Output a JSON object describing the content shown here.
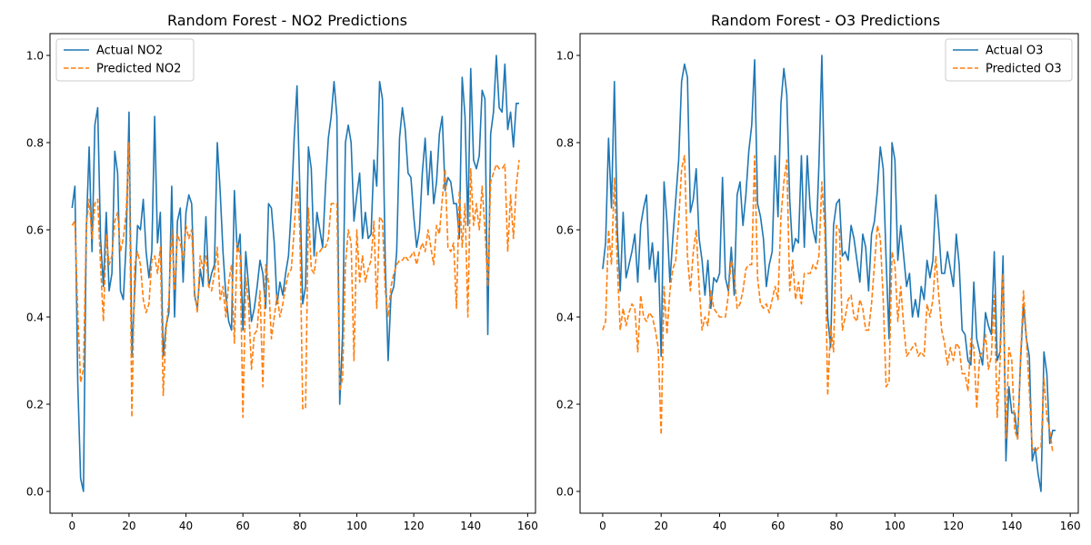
{
  "colors": {
    "actual": "#1f77b4",
    "predicted": "#ff7f0e"
  },
  "chart_data": [
    {
      "type": "line",
      "title": "Random Forest - NO2 Predictions",
      "xlabel": "",
      "ylabel": "",
      "xlim": [
        -7.75,
        162.75
      ],
      "ylim": [
        -0.05,
        1.05
      ],
      "xticks": [
        0,
        20,
        40,
        60,
        80,
        100,
        120,
        140,
        160
      ],
      "xtick_labels": [
        "0",
        "20",
        "40",
        "60",
        "80",
        "100",
        "120",
        "140",
        "160"
      ],
      "yticks": [
        0.0,
        0.2,
        0.4,
        0.6,
        0.8,
        1.0
      ],
      "ytick_labels": [
        "0.0",
        "0.2",
        "0.4",
        "0.6",
        "0.8",
        "1.0"
      ],
      "grid": false,
      "legend": "top-left",
      "series": [
        {
          "name": "Actual NO2",
          "style": "solid",
          "values": [
            0.65,
            0.7,
            0.25,
            0.03,
            0.0,
            0.6,
            0.79,
            0.55,
            0.84,
            0.88,
            0.58,
            0.47,
            0.64,
            0.46,
            0.5,
            0.78,
            0.73,
            0.46,
            0.44,
            0.57,
            0.87,
            0.31,
            0.46,
            0.61,
            0.6,
            0.67,
            0.55,
            0.49,
            0.55,
            0.86,
            0.57,
            0.64,
            0.31,
            0.38,
            0.41,
            0.7,
            0.4,
            0.62,
            0.65,
            0.48,
            0.64,
            0.68,
            0.66,
            0.45,
            0.42,
            0.51,
            0.47,
            0.63,
            0.47,
            0.5,
            0.52,
            0.8,
            0.69,
            0.55,
            0.45,
            0.39,
            0.37,
            0.69,
            0.55,
            0.59,
            0.37,
            0.55,
            0.47,
            0.39,
            0.42,
            0.47,
            0.53,
            0.5,
            0.42,
            0.66,
            0.65,
            0.57,
            0.43,
            0.48,
            0.45,
            0.5,
            0.54,
            0.65,
            0.81,
            0.93,
            0.69,
            0.43,
            0.47,
            0.79,
            0.74,
            0.54,
            0.64,
            0.6,
            0.56,
            0.7,
            0.81,
            0.86,
            0.94,
            0.86,
            0.2,
            0.36,
            0.8,
            0.84,
            0.8,
            0.62,
            0.68,
            0.73,
            0.58,
            0.64,
            0.58,
            0.59,
            0.76,
            0.7,
            0.94,
            0.9,
            0.52,
            0.3,
            0.45,
            0.47,
            0.55,
            0.81,
            0.88,
            0.83,
            0.73,
            0.72,
            0.63,
            0.56,
            0.6,
            0.73,
            0.81,
            0.68,
            0.78,
            0.66,
            0.71,
            0.82,
            0.86,
            0.69,
            0.72,
            0.71,
            0.66,
            0.66,
            0.58,
            0.95,
            0.86,
            0.61,
            0.97,
            0.76,
            0.74,
            0.77,
            0.92,
            0.9,
            0.36,
            0.82,
            0.87,
            1.0,
            0.88,
            0.87,
            0.98,
            0.83,
            0.87,
            0.79,
            0.89,
            0.89
          ]
        },
        {
          "name": "Predicted NO2",
          "style": "dashed",
          "values": [
            0.61,
            0.62,
            0.41,
            0.25,
            0.28,
            0.61,
            0.67,
            0.58,
            0.66,
            0.67,
            0.52,
            0.39,
            0.59,
            0.52,
            0.54,
            0.62,
            0.64,
            0.55,
            0.58,
            0.64,
            0.8,
            0.17,
            0.52,
            0.55,
            0.52,
            0.44,
            0.41,
            0.43,
            0.53,
            0.54,
            0.5,
            0.56,
            0.22,
            0.37,
            0.44,
            0.6,
            0.46,
            0.59,
            0.57,
            0.53,
            0.61,
            0.58,
            0.6,
            0.46,
            0.41,
            0.54,
            0.51,
            0.54,
            0.47,
            0.46,
            0.5,
            0.56,
            0.44,
            0.47,
            0.4,
            0.48,
            0.52,
            0.34,
            0.57,
            0.54,
            0.17,
            0.49,
            0.43,
            0.28,
            0.36,
            0.37,
            0.46,
            0.24,
            0.52,
            0.48,
            0.35,
            0.4,
            0.45,
            0.4,
            0.43,
            0.47,
            0.5,
            0.51,
            0.6,
            0.71,
            0.6,
            0.19,
            0.19,
            0.65,
            0.51,
            0.5,
            0.55,
            0.55,
            0.56,
            0.56,
            0.58,
            0.66,
            0.66,
            0.66,
            0.23,
            0.26,
            0.52,
            0.6,
            0.57,
            0.3,
            0.6,
            0.48,
            0.54,
            0.48,
            0.51,
            0.53,
            0.62,
            0.42,
            0.63,
            0.62,
            0.46,
            0.4,
            0.47,
            0.5,
            0.52,
            0.53,
            0.53,
            0.54,
            0.53,
            0.54,
            0.55,
            0.52,
            0.55,
            0.57,
            0.55,
            0.6,
            0.56,
            0.52,
            0.61,
            0.59,
            0.67,
            0.74,
            0.56,
            0.55,
            0.57,
            0.42,
            0.69,
            0.56,
            0.66,
            0.4,
            0.74,
            0.61,
            0.66,
            0.6,
            0.7,
            0.6,
            0.47,
            0.71,
            0.73,
            0.75,
            0.74,
            0.74,
            0.75,
            0.55,
            0.68,
            0.58,
            0.7,
            0.76
          ]
        }
      ]
    },
    {
      "type": "line",
      "title": "Random Forest - O3 Predictions",
      "xlabel": "",
      "ylabel": "",
      "xlim": [
        -7.75,
        162.75
      ],
      "ylim": [
        -0.05,
        1.05
      ],
      "xticks": [
        0,
        20,
        40,
        60,
        80,
        100,
        120,
        140,
        160
      ],
      "xtick_labels": [
        "0",
        "20",
        "40",
        "60",
        "80",
        "100",
        "120",
        "140",
        "160"
      ],
      "yticks": [
        0.0,
        0.2,
        0.4,
        0.6,
        0.8,
        1.0
      ],
      "ytick_labels": [
        "0.0",
        "0.2",
        "0.4",
        "0.6",
        "0.8",
        "1.0"
      ],
      "grid": false,
      "legend": "top-right",
      "series": [
        {
          "name": "Actual O3",
          "style": "solid",
          "values": [
            0.51,
            0.57,
            0.81,
            0.65,
            0.94,
            0.6,
            0.46,
            0.64,
            0.49,
            0.52,
            0.55,
            0.59,
            0.48,
            0.61,
            0.65,
            0.68,
            0.51,
            0.57,
            0.48,
            0.55,
            0.31,
            0.71,
            0.62,
            0.48,
            0.58,
            0.67,
            0.76,
            0.94,
            0.98,
            0.95,
            0.64,
            0.67,
            0.74,
            0.58,
            0.53,
            0.45,
            0.53,
            0.42,
            0.49,
            0.48,
            0.5,
            0.72,
            0.49,
            0.46,
            0.56,
            0.45,
            0.68,
            0.71,
            0.61,
            0.68,
            0.78,
            0.84,
            0.99,
            0.66,
            0.63,
            0.58,
            0.47,
            0.52,
            0.55,
            0.77,
            0.63,
            0.89,
            0.97,
            0.91,
            0.67,
            0.55,
            0.58,
            0.57,
            0.77,
            0.56,
            0.77,
            0.65,
            0.6,
            0.57,
            0.75,
            1.0,
            0.67,
            0.4,
            0.33,
            0.61,
            0.66,
            0.67,
            0.54,
            0.55,
            0.53,
            0.61,
            0.58,
            0.53,
            0.48,
            0.59,
            0.56,
            0.46,
            0.59,
            0.62,
            0.69,
            0.79,
            0.74,
            0.53,
            0.35,
            0.8,
            0.76,
            0.53,
            0.61,
            0.54,
            0.47,
            0.5,
            0.4,
            0.44,
            0.4,
            0.47,
            0.44,
            0.53,
            0.49,
            0.53,
            0.68,
            0.6,
            0.5,
            0.5,
            0.55,
            0.51,
            0.47,
            0.59,
            0.52,
            0.37,
            0.36,
            0.3,
            0.29,
            0.48,
            0.35,
            0.32,
            0.29,
            0.41,
            0.38,
            0.36,
            0.55,
            0.3,
            0.32,
            0.54,
            0.07,
            0.24,
            0.18,
            0.18,
            0.12,
            0.3,
            0.43,
            0.35,
            0.31,
            0.07,
            0.1,
            0.04,
            0.0,
            0.32,
            0.27,
            0.11,
            0.14,
            0.14
          ]
        },
        {
          "name": "Predicted O3",
          "style": "dashed",
          "values": [
            0.37,
            0.39,
            0.6,
            0.52,
            0.72,
            0.52,
            0.37,
            0.42,
            0.38,
            0.41,
            0.43,
            0.42,
            0.32,
            0.45,
            0.4,
            0.39,
            0.41,
            0.4,
            0.37,
            0.33,
            0.13,
            0.47,
            0.36,
            0.46,
            0.51,
            0.53,
            0.62,
            0.74,
            0.77,
            0.54,
            0.46,
            0.55,
            0.6,
            0.47,
            0.37,
            0.4,
            0.38,
            0.46,
            0.42,
            0.41,
            0.4,
            0.4,
            0.4,
            0.45,
            0.53,
            0.5,
            0.42,
            0.43,
            0.46,
            0.51,
            0.52,
            0.52,
            0.77,
            0.49,
            0.43,
            0.42,
            0.43,
            0.41,
            0.44,
            0.47,
            0.44,
            0.63,
            0.71,
            0.76,
            0.46,
            0.53,
            0.44,
            0.48,
            0.43,
            0.5,
            0.5,
            0.5,
            0.52,
            0.51,
            0.54,
            0.71,
            0.6,
            0.22,
            0.38,
            0.32,
            0.61,
            0.6,
            0.37,
            0.4,
            0.44,
            0.45,
            0.4,
            0.39,
            0.44,
            0.42,
            0.37,
            0.37,
            0.43,
            0.52,
            0.61,
            0.58,
            0.44,
            0.24,
            0.25,
            0.55,
            0.52,
            0.39,
            0.47,
            0.38,
            0.31,
            0.32,
            0.33,
            0.34,
            0.31,
            0.32,
            0.31,
            0.43,
            0.4,
            0.44,
            0.54,
            0.45,
            0.37,
            0.34,
            0.29,
            0.33,
            0.3,
            0.34,
            0.33,
            0.27,
            0.27,
            0.23,
            0.35,
            0.33,
            0.19,
            0.31,
            0.32,
            0.36,
            0.28,
            0.31,
            0.45,
            0.17,
            0.3,
            0.5,
            0.12,
            0.33,
            0.3,
            0.14,
            0.12,
            0.31,
            0.46,
            0.35,
            0.23,
            0.1,
            0.09,
            0.1,
            0.1,
            0.26,
            0.17,
            0.14,
            0.09
          ]
        }
      ]
    }
  ]
}
